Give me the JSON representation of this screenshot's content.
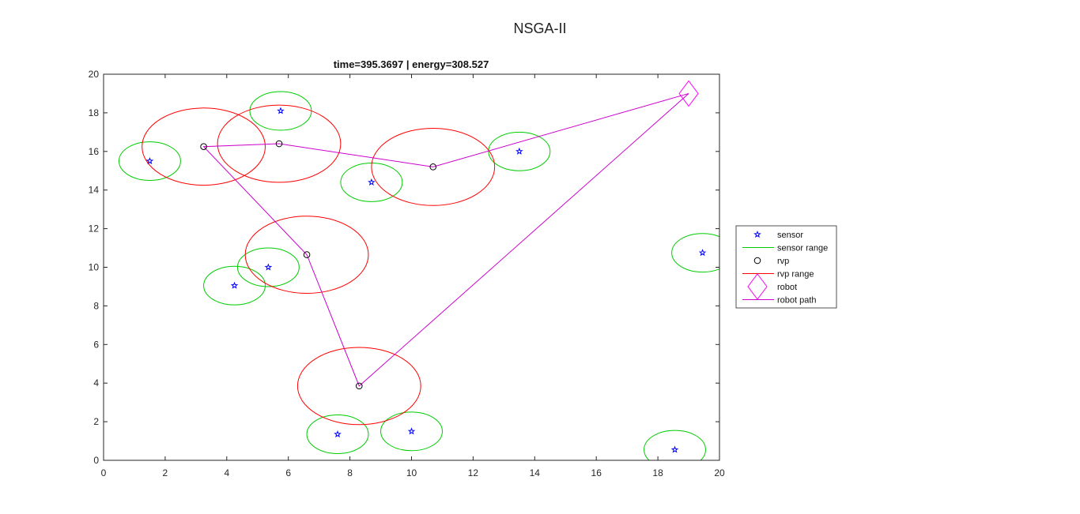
{
  "figure_title": "NSGA-II",
  "chart_data": {
    "type": "scatter",
    "title": "time=395.3697 | energy=308.527",
    "xlabel": "",
    "ylabel": "",
    "xlim": [
      0,
      20
    ],
    "ylim": [
      0,
      20
    ],
    "xticks": [
      0,
      2,
      4,
      6,
      8,
      10,
      12,
      14,
      16,
      18,
      20
    ],
    "yticks": [
      0,
      2,
      4,
      6,
      8,
      10,
      12,
      14,
      16,
      18,
      20
    ],
    "grid": false,
    "legend_position": "outside-right",
    "legend": [
      {
        "key": "sensor",
        "label": "sensor"
      },
      {
        "key": "sensor_range",
        "label": "sensor range"
      },
      {
        "key": "rvp",
        "label": "rvp"
      },
      {
        "key": "rvp_range",
        "label": "rvp range"
      },
      {
        "key": "robot",
        "label": "robot"
      },
      {
        "key": "robot_path",
        "label": "robot path"
      }
    ],
    "colors": {
      "sensor": "#0000ff",
      "sensor_range": "#00cc00",
      "rvp": "#000000",
      "rvp_range": "#ff0000",
      "robot": "#ff00ff",
      "robot_path": "#cc00cc"
    },
    "sensor_range_radius": 1.0,
    "rvp_range_radius": 2.0,
    "sensors": [
      {
        "x": 1.5,
        "y": 15.5
      },
      {
        "x": 5.75,
        "y": 18.1
      },
      {
        "x": 8.7,
        "y": 14.4
      },
      {
        "x": 13.5,
        "y": 16.0
      },
      {
        "x": 5.35,
        "y": 10.0
      },
      {
        "x": 4.25,
        "y": 9.05
      },
      {
        "x": 19.45,
        "y": 10.75
      },
      {
        "x": 7.6,
        "y": 1.35
      },
      {
        "x": 10.0,
        "y": 1.5
      },
      {
        "x": 18.55,
        "y": 0.55
      }
    ],
    "rvps": [
      {
        "x": 3.25,
        "y": 16.25
      },
      {
        "x": 5.7,
        "y": 16.4
      },
      {
        "x": 10.7,
        "y": 15.2
      },
      {
        "x": 6.6,
        "y": 10.65
      },
      {
        "x": 8.3,
        "y": 3.85
      }
    ],
    "robot": {
      "x": 19.0,
      "y": 19.0
    },
    "robot_path": [
      {
        "x": 19.0,
        "y": 19.0
      },
      {
        "x": 10.7,
        "y": 15.2
      },
      {
        "x": 5.7,
        "y": 16.4
      },
      {
        "x": 3.25,
        "y": 16.25
      },
      {
        "x": 6.6,
        "y": 10.65
      },
      {
        "x": 8.3,
        "y": 3.85
      },
      {
        "x": 19.0,
        "y": 19.0
      }
    ]
  }
}
